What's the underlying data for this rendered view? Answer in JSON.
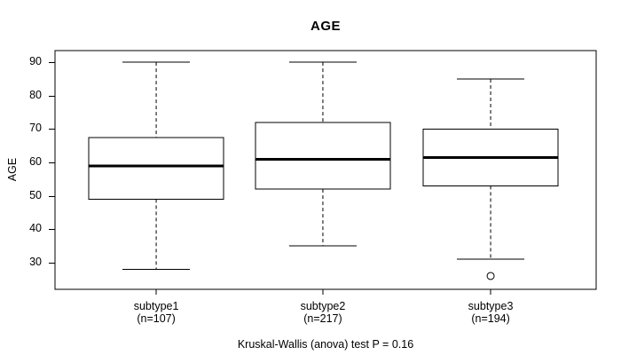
{
  "chart_data": {
    "type": "boxplot",
    "title": "AGE",
    "ylabel": "AGE",
    "xlabel": "",
    "caption": "Kruskal-Wallis (anova) test P = 0.16",
    "grid": false,
    "legend": "none",
    "yticks": [
      30,
      40,
      50,
      60,
      70,
      80,
      90
    ],
    "ylim": [
      22,
      93.5
    ],
    "groups": [
      {
        "label": "subtype1",
        "n_label": "(n=107)",
        "n": 107,
        "whisker_low": 28,
        "q1": 49,
        "median": 59,
        "q3": 67.5,
        "whisker_high": 90,
        "outliers": []
      },
      {
        "label": "subtype2",
        "n_label": "(n=217)",
        "n": 217,
        "whisker_low": 35,
        "q1": 52,
        "median": 61,
        "q3": 72,
        "whisker_high": 90,
        "outliers": []
      },
      {
        "label": "subtype3",
        "n_label": "(n=194)",
        "n": 194,
        "whisker_low": 31,
        "q1": 53,
        "median": 61.5,
        "q3": 70,
        "whisker_high": 85,
        "outliers": [
          26
        ]
      }
    ]
  },
  "colors": {
    "line": "#000000",
    "box_fill": "#ffffff",
    "background": "#ffffff",
    "text": "#000000"
  }
}
